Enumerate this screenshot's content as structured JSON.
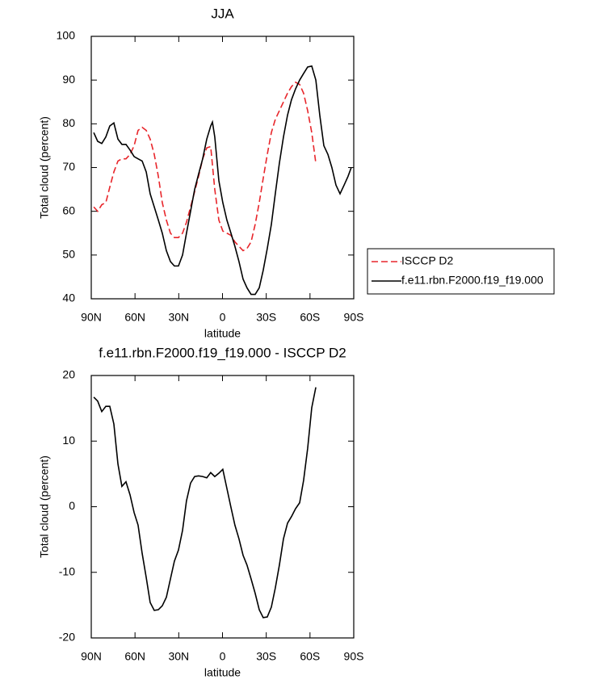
{
  "chart_data": [
    {
      "type": "line",
      "title": "JJA",
      "xlabel": "latitude",
      "ylabel": "Total cloud (percent)",
      "xlim": [
        90,
        -90
      ],
      "xticks": [
        {
          "value": 90,
          "label": "90N"
        },
        {
          "value": 60,
          "label": "60N"
        },
        {
          "value": 30,
          "label": "30N"
        },
        0,
        {
          "value": -30,
          "label": "30S"
        },
        {
          "value": -60,
          "label": "60S"
        },
        {
          "value": -90,
          "label": "90S"
        }
      ],
      "ylim": [
        40,
        100
      ],
      "yticks": [
        40,
        50,
        60,
        70,
        80,
        90,
        100
      ],
      "legend": "right",
      "series": [
        {
          "name": "ISCCP D2",
          "color": "#e8262b",
          "dash": true,
          "x": [
            88.3,
            85.6,
            82.8,
            80.0,
            77.3,
            74.5,
            71.7,
            69.0,
            66.2,
            63.4,
            60.6,
            57.9,
            55.1,
            52.3,
            49.6,
            46.8,
            44.0,
            41.3,
            38.5,
            35.7,
            33.0,
            30.2,
            27.4,
            24.7,
            21.9,
            19.1,
            16.4,
            13.6,
            10.8,
            8.1,
            5.3,
            2.5,
            -0.2,
            -3.0,
            -5.8,
            -8.5,
            -11.3,
            -14.1,
            -16.8,
            -19.6,
            -22.4,
            -25.2,
            -27.9,
            -30.7,
            -33.5,
            -36.2,
            -39.0,
            -41.8,
            -44.6,
            -47.3,
            -50.1,
            -52.9,
            -55.6,
            -58.4,
            -61.2,
            -64.0
          ],
          "values": [
            61,
            60,
            61.5,
            62,
            65.5,
            69,
            71.5,
            72,
            72,
            73,
            75,
            78.5,
            79.2,
            78.5,
            76.5,
            73,
            68,
            62,
            58,
            55,
            54,
            54,
            55,
            57.5,
            61,
            64.5,
            68,
            72,
            74.5,
            74.8,
            65,
            58,
            55.5,
            55,
            54.5,
            53,
            52,
            51,
            51.5,
            53,
            57,
            62,
            67.5,
            73,
            78,
            81,
            83,
            85,
            87,
            88.5,
            89.5,
            89,
            87,
            83,
            78,
            71
          ]
        },
        {
          "name": "f.e11.rbn.F2000.f19_f19.000",
          "color": "#000000",
          "dash": false,
          "x": [
            88.3,
            85.6,
            82.8,
            80.0,
            77.3,
            74.5,
            71.7,
            69.0,
            66.2,
            63.4,
            60.6,
            57.9,
            55.1,
            52.3,
            49.6,
            46.8,
            44.0,
            41.3,
            38.5,
            35.7,
            33.0,
            30.2,
            27.4,
            24.7,
            21.9,
            19.1,
            16.4,
            13.6,
            10.8,
            8.1,
            6.9,
            5.3,
            2.5,
            -0.2,
            -3.0,
            -5.8,
            -8.5,
            -11.3,
            -14.1,
            -16.8,
            -19.6,
            -22.4,
            -25.2,
            -27.9,
            -30.7,
            -33.5,
            -36.2,
            -39.0,
            -41.8,
            -44.6,
            -47.3,
            -50.1,
            -52.9,
            -55.6,
            -58.4,
            -61.2,
            -64.0,
            -66.7,
            -69.5,
            -72.3,
            -75.0,
            -77.8,
            -80.6,
            -83.4,
            -86.1,
            -88.3
          ],
          "values": [
            78,
            76,
            75.5,
            77,
            79.5,
            80.2,
            76.5,
            75.3,
            75.3,
            74,
            72.5,
            72,
            71.5,
            69,
            64,
            61,
            58,
            55,
            51,
            48.5,
            47.5,
            47.5,
            50,
            55,
            60,
            65,
            68.5,
            72,
            76.5,
            79.5,
            80.4,
            77,
            67,
            62,
            58,
            55,
            52,
            48.5,
            44.5,
            42.5,
            41,
            41,
            42.5,
            46.5,
            51.5,
            57,
            64,
            71,
            77,
            82,
            85.5,
            88,
            90,
            91.5,
            93,
            93.2,
            90,
            82,
            75,
            73,
            70,
            66,
            64,
            66,
            68,
            70
          ]
        }
      ]
    },
    {
      "type": "line",
      "title": "f.e11.rbn.F2000.f19_f19.000 - ISCCP D2",
      "xlabel": "latitude",
      "ylabel": "Total cloud (percent)",
      "xlim": [
        90,
        -90
      ],
      "xticks": [
        {
          "value": 90,
          "label": "90N"
        },
        {
          "value": 60,
          "label": "60N"
        },
        {
          "value": 30,
          "label": "30N"
        },
        0,
        {
          "value": -30,
          "label": "30S"
        },
        {
          "value": -60,
          "label": "60S"
        },
        {
          "value": -90,
          "label": "90S"
        }
      ],
      "ylim": [
        -20,
        20
      ],
      "yticks": [
        -20,
        -10,
        0,
        10,
        20
      ],
      "series": [
        {
          "color": "#000000",
          "dash": false,
          "x": [
            88.3,
            85.6,
            82.8,
            80.0,
            77.3,
            74.5,
            71.7,
            69.0,
            66.2,
            63.4,
            60.6,
            57.9,
            55.1,
            52.3,
            49.6,
            46.8,
            44.0,
            41.3,
            38.5,
            35.7,
            33.0,
            30.2,
            27.4,
            24.7,
            21.9,
            19.1,
            16.4,
            13.6,
            10.8,
            8.1,
            5.3,
            2.5,
            -0.2,
            -3.0,
            -5.8,
            -8.5,
            -11.3,
            -14.1,
            -16.8,
            -19.6,
            -22.4,
            -25.2,
            -27.9,
            -30.7,
            -33.5,
            -36.2,
            -39.0,
            -41.8,
            -44.6,
            -47.3,
            -50.1,
            -52.9,
            -55.6,
            -58.4,
            -61.2,
            -64.0
          ],
          "values": [
            16.7,
            16.1,
            14.5,
            15.3,
            15.3,
            12.6,
            6.5,
            3.1,
            3.8,
            1.8,
            -0.9,
            -2.8,
            -7.1,
            -10.8,
            -14.6,
            -15.8,
            -15.7,
            -15.1,
            -13.8,
            -11,
            -8.3,
            -6.6,
            -3.6,
            0.9,
            3.6,
            4.6,
            4.7,
            4.6,
            4.4,
            5.2,
            4.6,
            5.1,
            5.7,
            2.8,
            -0.1,
            -2.8,
            -4.9,
            -7.4,
            -8.9,
            -11,
            -13.2,
            -15.7,
            -16.9,
            -16.8,
            -15.3,
            -12.4,
            -8.9,
            -4.9,
            -2.5,
            -1.5,
            -0.3,
            0.6,
            4,
            8.9,
            15.1,
            18.2
          ]
        }
      ]
    }
  ]
}
